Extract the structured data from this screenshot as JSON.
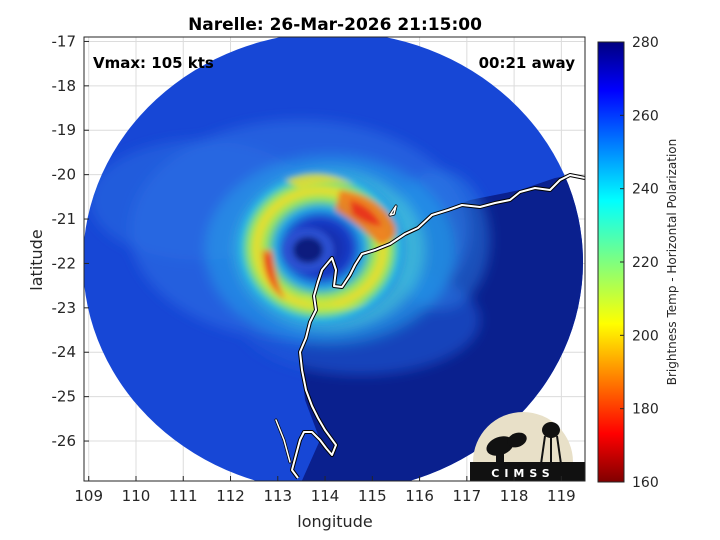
{
  "chart_data": {
    "type": "heatmap",
    "title": "Narelle: 26-Mar-2026 21:15:00",
    "xlabel": "longitude",
    "ylabel": "latitude",
    "xlim": [
      108.9,
      119.5
    ],
    "ylim": [
      -26.9,
      -16.9
    ],
    "x_ticks": [
      109,
      110,
      111,
      112,
      113,
      114,
      115,
      116,
      117,
      118,
      119
    ],
    "y_ticks": [
      -17,
      -18,
      -19,
      -20,
      -21,
      -22,
      -23,
      -24,
      -25,
      -26
    ],
    "grid": true,
    "annotations": {
      "vmax": "Vmax: 105 kts",
      "away": "00:21 away"
    },
    "colorbar": {
      "label": "Brightness Temp - Horizontal Polarization",
      "range": [
        160,
        280
      ],
      "ticks": [
        160,
        180,
        200,
        220,
        240,
        260,
        280
      ],
      "colormap": "jet"
    },
    "storm_center": {
      "lon": 113.95,
      "lat": -21.85
    },
    "logo_text": "CIMSS"
  },
  "colors": {
    "background_cold": "#1747d6",
    "land": "#0a208e",
    "coast": "#ffffff"
  }
}
